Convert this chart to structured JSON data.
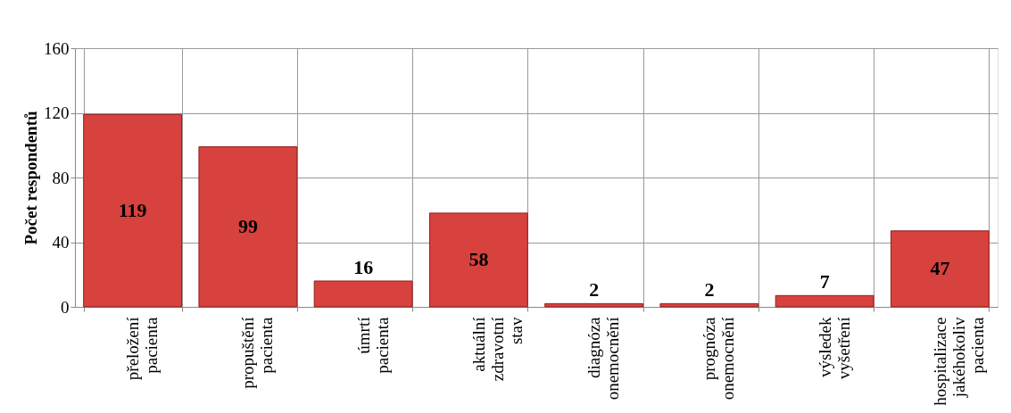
{
  "chart_data": {
    "type": "bar",
    "ylabel": "Počet respondentů",
    "categories": [
      "přeložení pacienta",
      "propuštění pacienta",
      "úmrtí pacienta",
      "aktuální zdravotní stav",
      "diagnóza onemocnění",
      "prognóza onemocnění",
      "výsledek vyšetření",
      "hospitalizace jakéhokoliv pacienta"
    ],
    "values": [
      119,
      99,
      16,
      58,
      2,
      2,
      7,
      47
    ],
    "color": "#d8423e",
    "ylim": [
      0,
      160
    ],
    "yticks": [
      0,
      40,
      80,
      120,
      160
    ],
    "grid": true,
    "data_labels": true
  }
}
